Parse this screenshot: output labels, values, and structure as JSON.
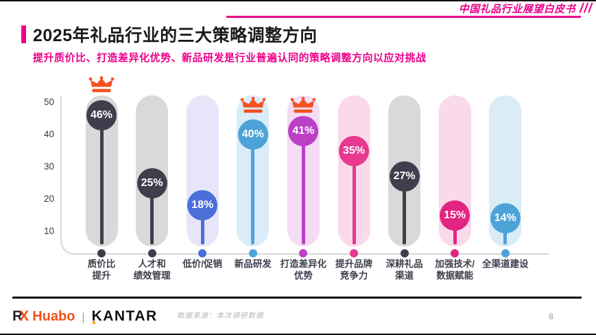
{
  "header": {
    "watermark": "中国礼品行业展望白皮书",
    "slashes": "///",
    "accent_color": "#ec008c"
  },
  "title": "2025年礼品行业的三大策略调整方向",
  "subtitle": "提升质价比、打造差异化优势、新品研发是行业普遍认同的策略调整方向以应对挑战",
  "chart_data": {
    "type": "bar",
    "subtype": "lollipop-capsule",
    "title": "2025年礼品行业的三大策略调整方向",
    "unit": "%",
    "ylim": [
      0,
      50
    ],
    "yticks": [
      10,
      20,
      30,
      40,
      50
    ],
    "grid": false,
    "legend": false,
    "crown_color": "#f4511e",
    "categories": [
      "质价比提升",
      "人才和绩效管理",
      "低价/促销",
      "新品研发",
      "打造差异化优势",
      "提升品牌竞争力",
      "深耕礼品渠道",
      "加强技术/数据赋能",
      "全渠道建设"
    ],
    "values": [
      46,
      25,
      18,
      40,
      41,
      35,
      27,
      15,
      14
    ],
    "crowned_categories": [
      "质价比提升",
      "新品研发",
      "打造差异化优势"
    ],
    "bars": [
      {
        "label_lines": [
          "质价比",
          "提升"
        ],
        "value": 46,
        "capsule_color": "#d9d9d9",
        "accent_color": "#3f3e4c",
        "crown": "above"
      },
      {
        "label_lines": [
          "人才和",
          "绩效管理"
        ],
        "value": 25,
        "capsule_color": "#d9d9d9",
        "accent_color": "#3f3e4c",
        "crown": ""
      },
      {
        "label_lines": [
          "低价/促销"
        ],
        "value": 18,
        "capsule_color": "#e7e5f9",
        "accent_color": "#4a6fd9",
        "crown": ""
      },
      {
        "label_lines": [
          "新品研发"
        ],
        "value": 40,
        "capsule_color": "#d9ecf8",
        "accent_color": "#4da3d8",
        "crown": "inside"
      },
      {
        "label_lines": [
          "打造差异化",
          "优势"
        ],
        "value": 41,
        "capsule_color": "#f3dcf4",
        "accent_color": "#bb40c6",
        "crown": "inside"
      },
      {
        "label_lines": [
          "提升品牌",
          "竞争力"
        ],
        "value": 35,
        "capsule_color": "#f9d9ea",
        "accent_color": "#e6398f",
        "crown": ""
      },
      {
        "label_lines": [
          "深耕礼品",
          "渠道"
        ],
        "value": 27,
        "capsule_color": "#d9d9d9",
        "accent_color": "#3f3e4c",
        "crown": ""
      },
      {
        "label_lines": [
          "加强技术/",
          "数据赋能"
        ],
        "value": 15,
        "capsule_color": "#f9d9ea",
        "accent_color": "#e32482",
        "crown": ""
      },
      {
        "label_lines": [
          "全渠道建设"
        ],
        "value": 14,
        "capsule_color": "#d9ecf8",
        "accent_color": "#4da3d8",
        "crown": ""
      }
    ]
  },
  "footer": {
    "logo_r": "R",
    "logo_x": "X",
    "logo_huabo": "Huabo",
    "logo_separator": "|",
    "logo_kantar": "KANTAR",
    "data_source": "数据来源：本次调研数据",
    "page_number": "8"
  }
}
